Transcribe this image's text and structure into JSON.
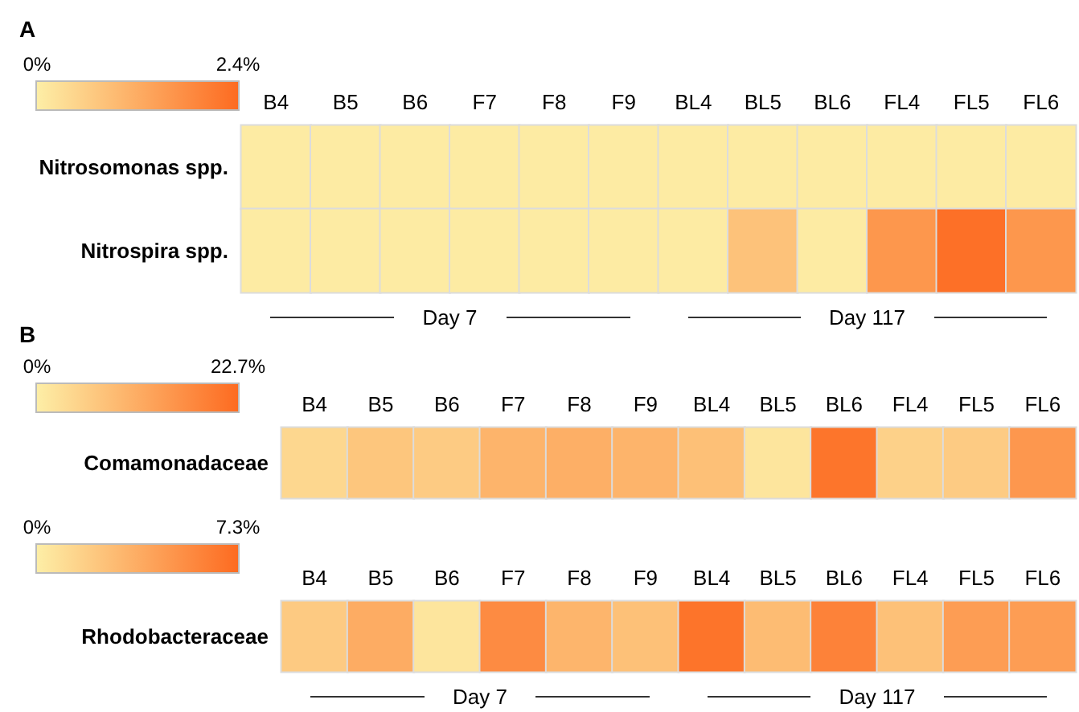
{
  "chart_data": [
    {
      "type": "heatmap",
      "title": "A",
      "categories": [
        "B4",
        "B5",
        "B6",
        "F7",
        "F8",
        "F9",
        "BL4",
        "BL5",
        "BL6",
        "FL4",
        "FL5",
        "FL6"
      ],
      "y_categories": [
        "Nitrosomonas spp.",
        "Nitrospira spp."
      ],
      "cells": [
        [
          0.05,
          0.05,
          0.05,
          0.05,
          0.05,
          0.05,
          0.05,
          0.05,
          0.05,
          0.05,
          0.05,
          0.05
        ],
        [
          0.05,
          0.05,
          0.05,
          0.05,
          0.05,
          0.05,
          0.05,
          0.8,
          0.05,
          1.6,
          2.3,
          1.6
        ]
      ],
      "clim": [
        0,
        2.4
      ],
      "cticks": [
        {
          "value": 0,
          "label": "0%"
        },
        {
          "value": 2.4,
          "label": "2.4%"
        }
      ],
      "annotations": [
        "Day 7",
        "Day 117"
      ]
    },
    {
      "type": "heatmap",
      "title": "B",
      "categories": [
        "B4",
        "B5",
        "B6",
        "F7",
        "F8",
        "F9",
        "BL4",
        "BL5",
        "BL6",
        "FL4",
        "FL5",
        "FL6"
      ],
      "y_categories": [
        "Comamonadaceae"
      ],
      "cells": [
        [
          4,
          7,
          6,
          10,
          11,
          10,
          8,
          1.5,
          21,
          5,
          6,
          15
        ]
      ],
      "clim": [
        0,
        22.7
      ],
      "cticks": [
        {
          "value": 0,
          "label": "0%"
        },
        {
          "value": 22.7,
          "label": "22.7%"
        }
      ]
    },
    {
      "type": "heatmap",
      "categories": [
        "B4",
        "B5",
        "B6",
        "F7",
        "F8",
        "F9",
        "BL4",
        "BL5",
        "BL6",
        "FL4",
        "FL5",
        "FL6"
      ],
      "y_categories": [
        "Rhodobacteraceae"
      ],
      "cells": [
        [
          2,
          3.7,
          0.5,
          5.5,
          3.2,
          2.5,
          6.8,
          2.8,
          6,
          2.5,
          4.5,
          4.5
        ]
      ],
      "clim": [
        0,
        7.3
      ],
      "cticks": [
        {
          "value": 0,
          "label": "0%"
        },
        {
          "value": 7.3,
          "label": "7.3%"
        }
      ],
      "annotations": [
        "Day 7",
        "Day 117"
      ]
    }
  ]
}
